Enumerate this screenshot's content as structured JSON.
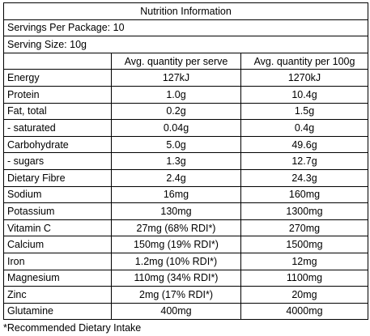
{
  "table": {
    "title": "Nutrition Information",
    "servings_per_package": "Servings Per Package: 10",
    "serving_size": "Serving Size: 10g",
    "headers": [
      "Avg. quantity per serve",
      "Avg. quantity per 100g"
    ],
    "rows": [
      [
        "Energy",
        "127kJ",
        "1270kJ"
      ],
      [
        "Protein",
        "1.0g",
        "10.4g"
      ],
      [
        "Fat, total",
        "0.2g",
        "1.5g"
      ],
      [
        "- saturated",
        "0.04g",
        "0.4g"
      ],
      [
        "Carbohydrate",
        "5.0g",
        "49.6g"
      ],
      [
        "- sugars",
        "1.3g",
        "12.7g"
      ],
      [
        "Dietary Fibre",
        "2.4g",
        "24.3g"
      ],
      [
        "Sodium",
        "16mg",
        "160mg"
      ],
      [
        "Potassium",
        "130mg",
        "1300mg"
      ],
      [
        "Vitamin C",
        "27mg (68% RDI*)",
        "270mg"
      ],
      [
        "Calcium",
        "150mg (19% RDI*)",
        "1500mg"
      ],
      [
        "Iron",
        "1.2mg (10% RDI*)",
        "12mg"
      ],
      [
        "Magnesium",
        "110mg (34% RDI*)",
        "1100mg"
      ],
      [
        "Zinc",
        "2mg (17% RDI*)",
        "20mg"
      ],
      [
        "Glutamine",
        "400mg",
        "4000mg"
      ]
    ],
    "footnote": "*Recommended Dietary Intake"
  }
}
